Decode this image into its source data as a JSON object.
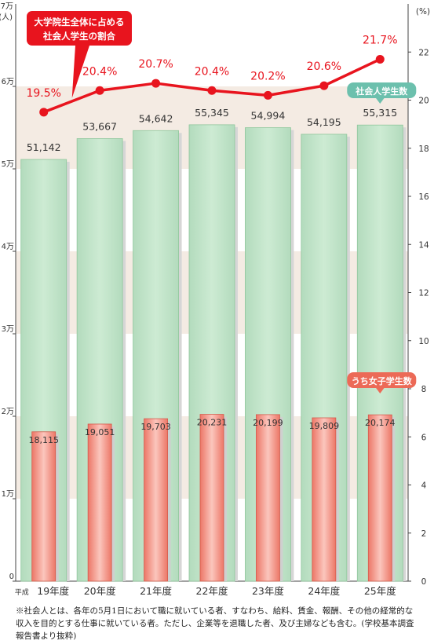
{
  "chart_data": {
    "type": "bar",
    "categories_prefix": "平成",
    "categories": [
      "19年度",
      "20年度",
      "21年度",
      "22年度",
      "23年度",
      "24年度",
      "25年度"
    ],
    "series": [
      {
        "name": "社会人学生数",
        "values": [
          51142,
          53667,
          54642,
          55345,
          54994,
          54195,
          55315
        ],
        "labels": [
          "51,142",
          "53,667",
          "54,642",
          "55,345",
          "54,994",
          "54,195",
          "55,315"
        ],
        "color": "#bfe2c6"
      },
      {
        "name": "うち女子学生数",
        "values": [
          18115,
          19051,
          19703,
          20231,
          20199,
          19809,
          20174
        ],
        "labels": [
          "18,115",
          "19,051",
          "19,703",
          "20,231",
          "20,199",
          "19,809",
          "20,174"
        ],
        "color": "#f08a7c"
      }
    ],
    "line_series": {
      "name": "大学院生全体に占める社会人学生の割合",
      "name_lines": [
        "大学院生全体に占める",
        "社会人学生の割合"
      ],
      "values": [
        19.5,
        20.4,
        20.7,
        20.4,
        20.2,
        20.6,
        21.7
      ],
      "labels": [
        "19.5%",
        "20.4%",
        "20.7%",
        "20.4%",
        "20.2%",
        "20.6%",
        "21.7%"
      ],
      "color": "#e8141e"
    },
    "y_left": {
      "unit_top": "7万",
      "unit_sub": "(人)",
      "ylim": [
        0,
        70000
      ],
      "ticks": [
        "0",
        "1万",
        "2万",
        "3万",
        "4万",
        "5万",
        "6万"
      ]
    },
    "y_right": {
      "unit": "(%)",
      "ylim": [
        0,
        24
      ],
      "ticks": [
        "0",
        "2",
        "4",
        "6",
        "8",
        "10",
        "12",
        "14",
        "16",
        "18",
        "20",
        "22"
      ]
    }
  },
  "note": "※社会人とは、各年の5月1日において職に就いている者、すなわち、給料、賃金、報酬、その他の経常的な収入を目的とする仕事に就いている者。ただし、企業等を退職した者、及び主婦なども含む。(学校基本調査報告書より抜粋)"
}
